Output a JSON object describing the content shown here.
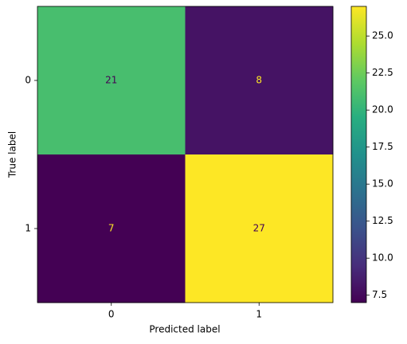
{
  "chart_data": {
    "type": "heatmap",
    "x_categories": [
      "0",
      "1"
    ],
    "y_categories": [
      "0",
      "1"
    ],
    "values": [
      [
        21,
        8
      ],
      [
        7,
        27
      ]
    ],
    "xlabel": "Predicted label",
    "ylabel": "True label",
    "colormap": "viridis",
    "clim": [
      7,
      27
    ],
    "cticks": [
      7.5,
      {
        "value": 10,
        "label": "10.0"
      },
      12.5,
      {
        "value": 15,
        "label": "15.0"
      },
      17.5,
      {
        "value": 20,
        "label": "20.0"
      },
      22.5,
      {
        "value": 25,
        "label": "25.0"
      }
    ]
  }
}
